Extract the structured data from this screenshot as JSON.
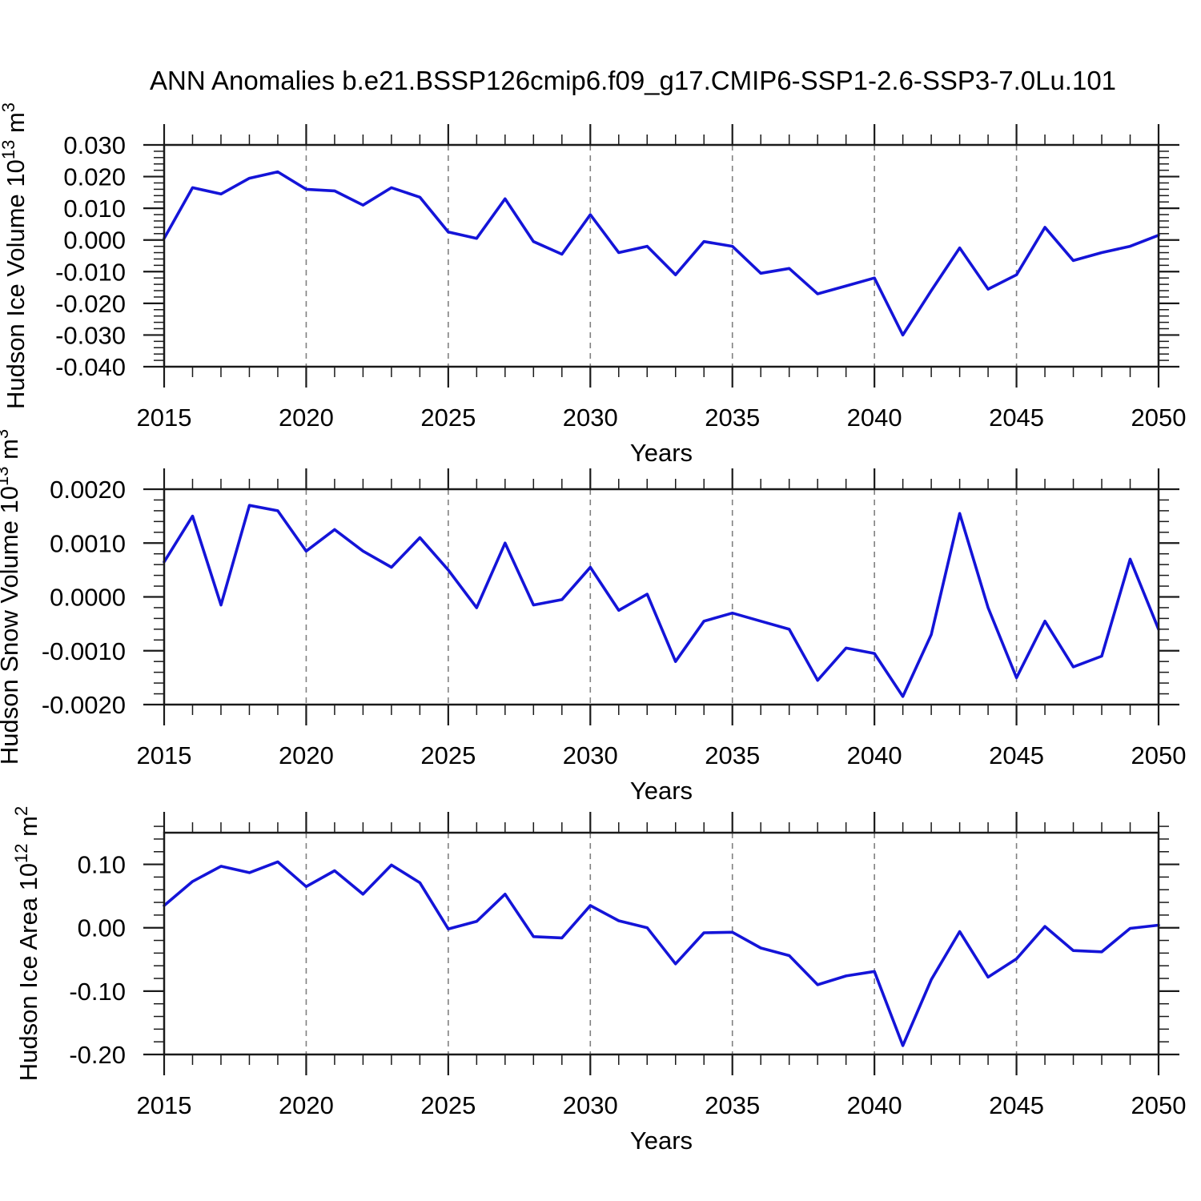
{
  "figure_title": "ANN Anomalies b.e21.BSSP126cmip6.f09_g17.CMIP6-SSP1-2.6-SSP3-7.0Lu.101",
  "colors": {
    "line": "#1414d8",
    "axis": "#1a1a1a",
    "grid": "#808080",
    "background": "#ffffff",
    "text": "#000000"
  },
  "chart_data": [
    {
      "type": "line",
      "series_name": "hudson-ice-volume",
      "xlabel": "Years",
      "ylabel": "Hudson Ice Volume 10^13 m^3",
      "ylabel_rich": [
        {
          "text": "Hudson Ice Volume 10",
          "sup": false
        },
        {
          "text": "13",
          "sup": true
        },
        {
          "text": " m",
          "sup": false
        },
        {
          "text": "3",
          "sup": true
        }
      ],
      "ylim": [
        -0.04,
        0.03
      ],
      "yticks": [
        0.03,
        0.02,
        0.01,
        0.0,
        -0.01,
        -0.02,
        -0.03,
        -0.04
      ],
      "ytick_labels": [
        "0.030",
        "0.020",
        "0.010",
        "0.000",
        "-0.010",
        "-0.020",
        "-0.030",
        "-0.040"
      ],
      "yminor_step": 0.002,
      "xticks": [
        2015,
        2020,
        2025,
        2030,
        2035,
        2040,
        2045,
        2050
      ],
      "xtick_labels": [
        "2015",
        "2020",
        "2025",
        "2030",
        "2035",
        "2040",
        "2045",
        "2050"
      ],
      "xminor_step": 1,
      "grid_x": [
        2020,
        2025,
        2030,
        2035,
        2040,
        2045
      ],
      "line_color": "#1414d8",
      "x": [
        2015,
        2016,
        2017,
        2018,
        2019,
        2020,
        2021,
        2022,
        2023,
        2024,
        2025,
        2026,
        2027,
        2028,
        2029,
        2030,
        2031,
        2032,
        2033,
        2034,
        2035,
        2036,
        2037,
        2038,
        2039,
        2040,
        2041,
        2042,
        2043,
        2044,
        2045,
        2046,
        2047,
        2048,
        2049,
        2050
      ],
      "values": [
        0.0005,
        0.0165,
        0.0145,
        0.0195,
        0.0215,
        0.016,
        0.0155,
        0.011,
        0.0165,
        0.0135,
        0.0025,
        0.0005,
        0.013,
        -0.0005,
        -0.0045,
        0.008,
        -0.004,
        -0.002,
        -0.011,
        -0.0005,
        -0.002,
        -0.0105,
        -0.009,
        -0.017,
        -0.0145,
        -0.012,
        -0.03,
        -0.016,
        -0.0025,
        -0.0155,
        -0.011,
        0.004,
        -0.0065,
        -0.004,
        -0.002,
        0.0015
      ]
    },
    {
      "type": "line",
      "series_name": "hudson-snow-volume",
      "xlabel": "Years",
      "ylabel": "Hudson Snow Volume 10^13 m^3",
      "ylabel_rich": [
        {
          "text": "Hudson Snow Volume 10",
          "sup": false
        },
        {
          "text": "13",
          "sup": true
        },
        {
          "text": " m",
          "sup": false
        },
        {
          "text": "3",
          "sup": true
        }
      ],
      "ylim": [
        -0.002,
        0.002
      ],
      "yticks": [
        0.002,
        0.001,
        0.0,
        -0.001,
        -0.002
      ],
      "ytick_labels": [
        "0.0020",
        "0.0010",
        "0.0000",
        "-0.0010",
        "-0.0020"
      ],
      "yminor_step": 0.0002,
      "xticks": [
        2015,
        2020,
        2025,
        2030,
        2035,
        2040,
        2045,
        2050
      ],
      "xtick_labels": [
        "2015",
        "2020",
        "2025",
        "2030",
        "2035",
        "2040",
        "2045",
        "2050"
      ],
      "xminor_step": 1,
      "grid_x": [
        2020,
        2025,
        2030,
        2035,
        2040,
        2045
      ],
      "line_color": "#1414d8",
      "x": [
        2015,
        2016,
        2017,
        2018,
        2019,
        2020,
        2021,
        2022,
        2023,
        2024,
        2025,
        2026,
        2027,
        2028,
        2029,
        2030,
        2031,
        2032,
        2033,
        2034,
        2035,
        2036,
        2037,
        2038,
        2039,
        2040,
        2041,
        2042,
        2043,
        2044,
        2045,
        2046,
        2047,
        2048,
        2049,
        2050
      ],
      "values": [
        0.00065,
        0.0015,
        -0.00015,
        0.0017,
        0.0016,
        0.00085,
        0.00125,
        0.00085,
        0.00055,
        0.0011,
        0.0005,
        -0.0002,
        0.001,
        -0.00015,
        -5e-05,
        0.00055,
        -0.00025,
        5e-05,
        -0.0012,
        -0.00045,
        -0.0003,
        -0.00045,
        -0.0006,
        -0.00155,
        -0.00095,
        -0.00105,
        -0.00185,
        -0.0007,
        0.00155,
        -0.0002,
        -0.0015,
        -0.00045,
        -0.0013,
        -0.0011,
        0.0007,
        -0.0006
      ]
    },
    {
      "type": "line",
      "series_name": "hudson-ice-area",
      "xlabel": "Years",
      "ylabel": "Hudson Ice Area 10^12 m^2",
      "ylabel_rich": [
        {
          "text": "Hudson Ice Area 10",
          "sup": false
        },
        {
          "text": "12",
          "sup": true
        },
        {
          "text": " m",
          "sup": false
        },
        {
          "text": "2",
          "sup": true
        }
      ],
      "ylim": [
        -0.2,
        0.15
      ],
      "yticks": [
        0.1,
        0.0,
        -0.1,
        -0.2
      ],
      "ytick_labels": [
        "0.10",
        "0.00",
        "-0.10",
        "-0.20"
      ],
      "yminor_step": 0.02,
      "xticks": [
        2015,
        2020,
        2025,
        2030,
        2035,
        2040,
        2045,
        2050
      ],
      "xtick_labels": [
        "2015",
        "2020",
        "2025",
        "2030",
        "2035",
        "2040",
        "2045",
        "2050"
      ],
      "xminor_step": 1,
      "grid_x": [
        2020,
        2025,
        2030,
        2035,
        2040,
        2045
      ],
      "line_color": "#1414d8",
      "x": [
        2015,
        2016,
        2017,
        2018,
        2019,
        2020,
        2021,
        2022,
        2023,
        2024,
        2025,
        2026,
        2027,
        2028,
        2029,
        2030,
        2031,
        2032,
        2033,
        2034,
        2035,
        2036,
        2037,
        2038,
        2039,
        2040,
        2041,
        2042,
        2043,
        2044,
        2045,
        2046,
        2047,
        2048,
        2049,
        2050
      ],
      "values": [
        0.035,
        0.073,
        0.097,
        0.087,
        0.104,
        0.065,
        0.09,
        0.053,
        0.099,
        0.071,
        -0.002,
        0.01,
        0.053,
        -0.014,
        -0.016,
        0.035,
        0.011,
        0.0,
        -0.057,
        -0.008,
        -0.007,
        -0.032,
        -0.044,
        -0.09,
        -0.076,
        -0.069,
        -0.186,
        -0.082,
        -0.006,
        -0.078,
        -0.049,
        0.002,
        -0.036,
        -0.038,
        -0.001,
        0.004
      ]
    }
  ]
}
